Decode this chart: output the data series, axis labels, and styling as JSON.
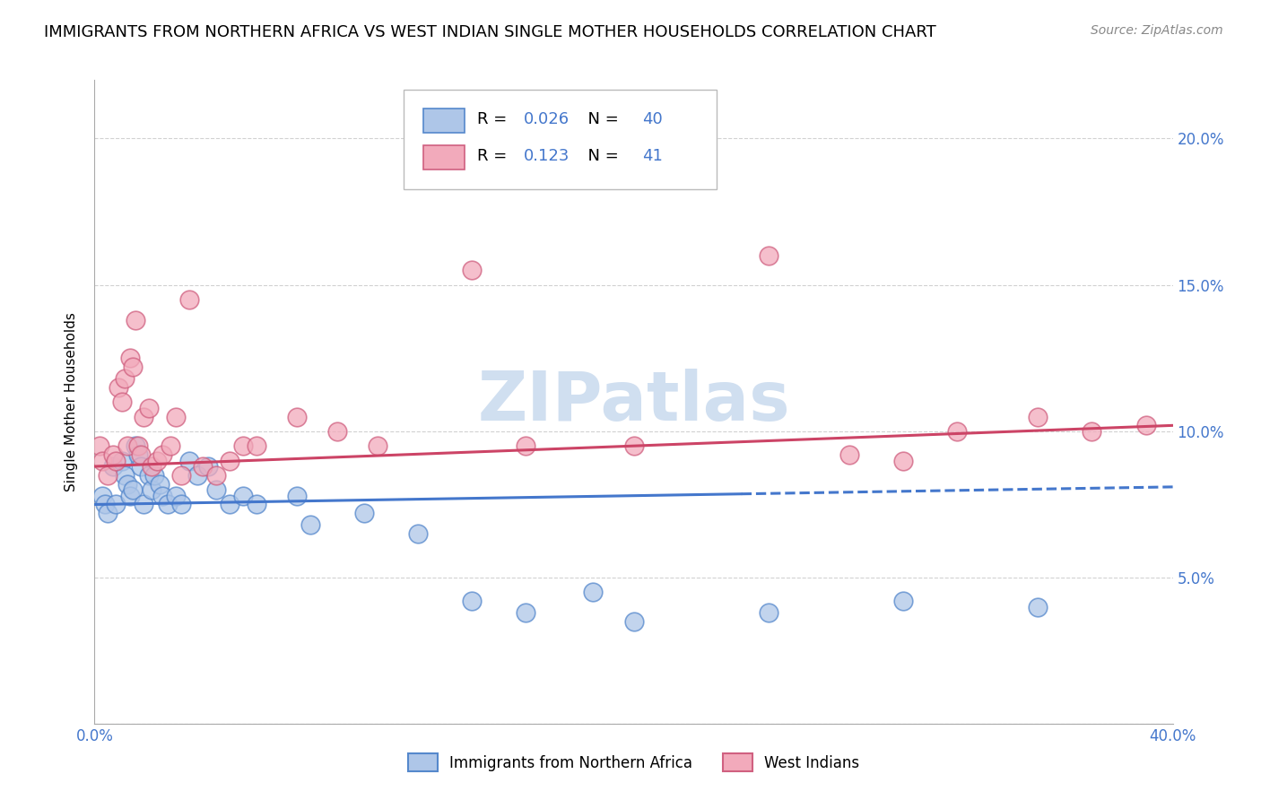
{
  "title": "IMMIGRANTS FROM NORTHERN AFRICA VS WEST INDIAN SINGLE MOTHER HOUSEHOLDS CORRELATION CHART",
  "source": "Source: ZipAtlas.com",
  "ylabel": "Single Mother Households",
  "series1_label": "Immigrants from Northern Africa",
  "series2_label": "West Indians",
  "series1_color": "#aec6e8",
  "series2_color": "#f2aabb",
  "series1_edge": "#5588cc",
  "series2_edge": "#d06080",
  "trend1_color": "#4477cc",
  "trend2_color": "#cc4466",
  "R1": 0.026,
  "N1": 40,
  "R2": 0.123,
  "N2": 41,
  "watermark": "ZIPatlas",
  "watermark_color": "#d0dff0",
  "title_fontsize": 13,
  "source_fontsize": 10,
  "axis_label_fontsize": 11,
  "tick_label_color": "#4477cc",
  "series1_x": [
    0.3,
    0.4,
    0.5,
    0.7,
    0.8,
    1.0,
    1.1,
    1.2,
    1.3,
    1.4,
    1.5,
    1.6,
    1.7,
    1.8,
    2.0,
    2.1,
    2.2,
    2.4,
    2.5,
    2.7,
    3.0,
    3.2,
    3.5,
    3.8,
    4.2,
    4.5,
    5.0,
    5.5,
    6.0,
    7.5,
    8.0,
    10.0,
    12.0,
    14.0,
    16.0,
    18.5,
    20.0,
    25.0,
    30.0,
    35.0
  ],
  "series1_y": [
    7.8,
    7.5,
    7.2,
    8.8,
    7.5,
    9.0,
    8.5,
    8.2,
    7.8,
    8.0,
    9.5,
    9.2,
    8.8,
    7.5,
    8.5,
    8.0,
    8.5,
    8.2,
    7.8,
    7.5,
    7.8,
    7.5,
    9.0,
    8.5,
    8.8,
    8.0,
    7.5,
    7.8,
    7.5,
    7.8,
    6.8,
    7.2,
    6.5,
    4.2,
    3.8,
    4.5,
    3.5,
    3.8,
    4.2,
    4.0
  ],
  "series2_x": [
    0.2,
    0.3,
    0.5,
    0.7,
    0.8,
    0.9,
    1.0,
    1.1,
    1.2,
    1.3,
    1.4,
    1.5,
    1.6,
    1.7,
    1.8,
    2.0,
    2.1,
    2.3,
    2.5,
    2.8,
    3.0,
    3.2,
    3.5,
    4.0,
    4.5,
    5.0,
    5.5,
    6.0,
    7.5,
    9.0,
    10.5,
    14.0,
    16.0,
    20.0,
    25.0,
    28.0,
    30.0,
    32.0,
    35.0,
    37.0,
    39.0
  ],
  "series2_y": [
    9.5,
    9.0,
    8.5,
    9.2,
    9.0,
    11.5,
    11.0,
    11.8,
    9.5,
    12.5,
    12.2,
    13.8,
    9.5,
    9.2,
    10.5,
    10.8,
    8.8,
    9.0,
    9.2,
    9.5,
    10.5,
    8.5,
    14.5,
    8.8,
    8.5,
    9.0,
    9.5,
    9.5,
    10.5,
    10.0,
    9.5,
    15.5,
    9.5,
    9.5,
    16.0,
    9.2,
    9.0,
    10.0,
    10.5,
    10.0,
    10.2
  ],
  "xlim": [
    0.0,
    40.0
  ],
  "ylim": [
    0.0,
    22.0
  ],
  "yticks": [
    0.0,
    5.0,
    10.0,
    15.0,
    20.0
  ],
  "ytick_labels_right": [
    "",
    "5.0%",
    "10.0%",
    "15.0%",
    "20.0%"
  ],
  "xticks": [
    0.0,
    10.0,
    20.0,
    30.0,
    40.0
  ],
  "xtick_labels": [
    "0.0%",
    "",
    "",
    "",
    "40.0%"
  ],
  "trend1_x0": 0.0,
  "trend1_x1": 40.0,
  "trend1_y0": 7.5,
  "trend1_y1": 8.1,
  "trend1_solid_end": 24.0,
  "trend2_x0": 0.0,
  "trend2_x1": 40.0,
  "trend2_y0": 8.8,
  "trend2_y1": 10.2
}
